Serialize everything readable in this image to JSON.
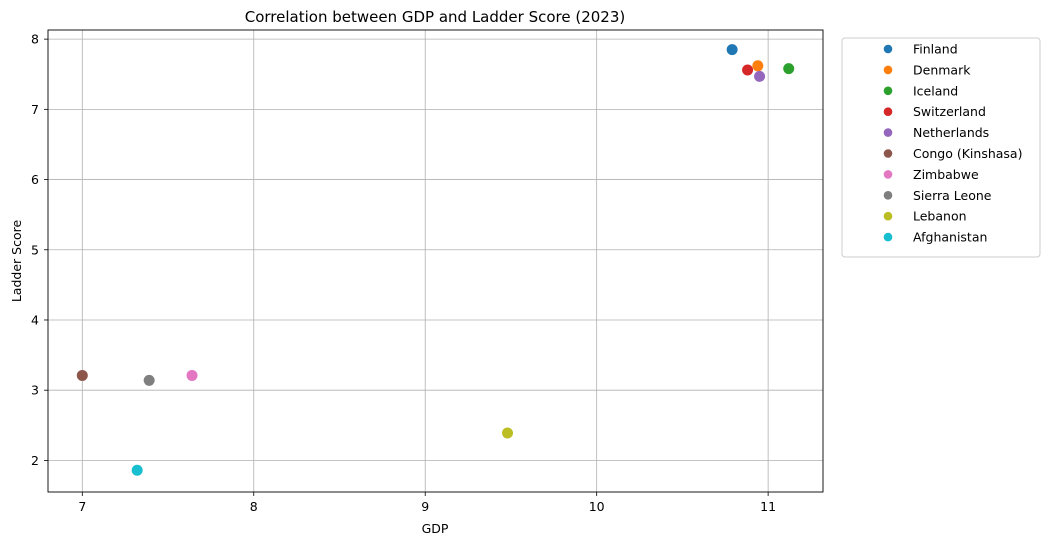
{
  "chart_data": {
    "type": "scatter",
    "title": "Correlation between GDP and Ladder Score (2023)",
    "xlabel": "GDP",
    "ylabel": "Ladder Score",
    "xlim": [
      6.8,
      11.32
    ],
    "ylim": [
      1.55,
      8.13
    ],
    "xticks": [
      7,
      8,
      9,
      10,
      11
    ],
    "yticks": [
      2,
      3,
      4,
      5,
      6,
      7,
      8
    ],
    "grid": true,
    "legend_position": "outside-right",
    "series": [
      {
        "name": "Finland",
        "color": "#1f77b4",
        "x": 10.79,
        "y": 7.85
      },
      {
        "name": "Denmark",
        "color": "#ff7f0e",
        "x": 10.94,
        "y": 7.62
      },
      {
        "name": "Iceland",
        "color": "#2ca02c",
        "x": 11.12,
        "y": 7.58
      },
      {
        "name": "Switzerland",
        "color": "#d62728",
        "x": 10.88,
        "y": 7.56
      },
      {
        "name": "Netherlands",
        "color": "#9467bd",
        "x": 10.95,
        "y": 7.47
      },
      {
        "name": "Congo (Kinshasa)",
        "color": "#8c564b",
        "x": 7.0,
        "y": 3.21
      },
      {
        "name": "Zimbabwe",
        "color": "#e377c2",
        "x": 7.64,
        "y": 3.21
      },
      {
        "name": "Sierra Leone",
        "color": "#7f7f7f",
        "x": 7.39,
        "y": 3.14
      },
      {
        "name": "Lebanon",
        "color": "#bcbd22",
        "x": 9.48,
        "y": 2.39
      },
      {
        "name": "Afghanistan",
        "color": "#17becf",
        "x": 7.32,
        "y": 1.86
      }
    ]
  }
}
